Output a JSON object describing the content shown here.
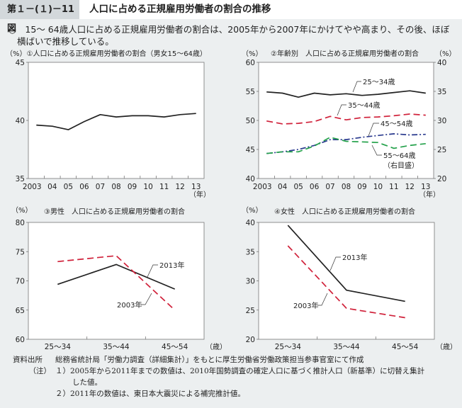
{
  "header": {
    "figure_number": "第１－(１)－11図",
    "title": "人口に占める正規雇用労働者の割合の推移"
  },
  "summary": {
    "line1": "○　15～ 64歳人口に占める正規雇用労働者の割合は、2005年から2007年にかけてやや高まり、その後、ほぼ",
    "line2": "横ばいで推移している。"
  },
  "colors": {
    "black": "#222222",
    "red": "#d0213a",
    "blue": "#2a3a8e",
    "green": "#23a14a",
    "panel": "#ffffff",
    "background": "#eceff0"
  },
  "chart_data": [
    {
      "id": "c1",
      "type": "line",
      "title": "①人口に占める正規雇用労働者の割合（男女15～64歳）",
      "ylabel": "（%）",
      "xlabel": "（年）",
      "categories": [
        "2003",
        "04",
        "05",
        "06",
        "07",
        "08",
        "09",
        "10",
        "11",
        "12",
        "13"
      ],
      "ylim": [
        35,
        45
      ],
      "yticks": [
        35,
        40,
        45
      ],
      "series": [
        {
          "name": "男女15～64歳",
          "style": "solid",
          "color": "black",
          "values": [
            39.6,
            39.5,
            39.2,
            39.9,
            40.5,
            40.3,
            40.4,
            40.4,
            40.3,
            40.5,
            40.6
          ]
        }
      ]
    },
    {
      "id": "c2",
      "type": "line",
      "title": "②年齢別　人口に占める正規雇用労働者の割合",
      "ylabel": "（%）",
      "y2label": "（%）",
      "xlabel": "（年）",
      "categories": [
        "2003",
        "04",
        "05",
        "06",
        "07",
        "08",
        "09",
        "10",
        "11",
        "12",
        "13"
      ],
      "ylim": [
        40,
        60
      ],
      "yticks": [
        40,
        45,
        50,
        55,
        60
      ],
      "y2lim": [
        20,
        40
      ],
      "y2ticks": [
        20,
        25,
        30,
        35,
        40
      ],
      "series": [
        {
          "name": "25～34歳",
          "style": "solid",
          "color": "black",
          "axis": "left",
          "values": [
            54.9,
            54.7,
            54.0,
            54.7,
            54.4,
            54.6,
            54.3,
            54.5,
            54.8,
            55.1,
            54.7
          ]
        },
        {
          "name": "35～44歳",
          "style": "dash",
          "color": "red",
          "axis": "left",
          "values": [
            49.9,
            49.4,
            49.5,
            49.8,
            50.7,
            50.1,
            50.5,
            50.6,
            50.8,
            51.1,
            50.9
          ]
        },
        {
          "name": "45～54歳",
          "style": "dashdot",
          "color": "blue",
          "axis": "left",
          "values": [
            44.3,
            44.6,
            45.0,
            45.7,
            46.7,
            46.7,
            47.1,
            47.4,
            47.7,
            47.5,
            47.6
          ]
        },
        {
          "name": "55～64歳",
          "style": "dash",
          "color": "green",
          "axis": "right",
          "values": [
            24.3,
            24.6,
            24.6,
            25.6,
            27.1,
            26.4,
            26.3,
            26.2,
            25.2,
            25.7,
            26.0
          ]
        }
      ],
      "annotations": [
        "25～34歳",
        "35～44歳",
        "45～54歳",
        "55～64歳",
        "（右目盛）"
      ]
    },
    {
      "id": "c3",
      "type": "line",
      "title": "③男性　人口に占める正規雇用労働者の割合",
      "ylabel": "（%）",
      "xlabel": "（歳）",
      "categories": [
        "25～34",
        "35～44",
        "45～54"
      ],
      "ylim": [
        60,
        80
      ],
      "yticks": [
        60,
        65,
        70,
        75,
        80
      ],
      "series": [
        {
          "name": "2013年",
          "style": "solid",
          "color": "black",
          "values": [
            69.4,
            72.8,
            68.6
          ]
        },
        {
          "name": "2003年",
          "style": "dash",
          "color": "red",
          "values": [
            73.3,
            74.3,
            65.0
          ]
        }
      ]
    },
    {
      "id": "c4",
      "type": "line",
      "title": "④女性　人口に占める正規雇用労働者の割合",
      "ylabel": "（%）",
      "xlabel": "（歳）",
      "categories": [
        "25～34",
        "35～44",
        "45～54"
      ],
      "ylim": [
        20,
        40
      ],
      "yticks": [
        20,
        25,
        30,
        35,
        40
      ],
      "series": [
        {
          "name": "2013年",
          "style": "solid",
          "color": "black",
          "values": [
            39.5,
            28.4,
            26.5
          ]
        },
        {
          "name": "2003年",
          "style": "dash",
          "color": "red",
          "values": [
            36.0,
            25.3,
            23.7
          ]
        }
      ]
    }
  ],
  "notes": {
    "source_label": "資料出所",
    "source_text": "総務省統計局「労働力調査（詳細集計）」をもとに厚生労働省労働政策担当参事官室にて作成",
    "note_label": "（注）",
    "note1": "１）2005年から2011年までの数値は、2010年国勢調査の確定人口に基づく推計人口（新基準）に切替え集計",
    "note1_cont": "した値。",
    "note2": "２）2011年の数値は、東日本大震災による補完推計値。"
  }
}
